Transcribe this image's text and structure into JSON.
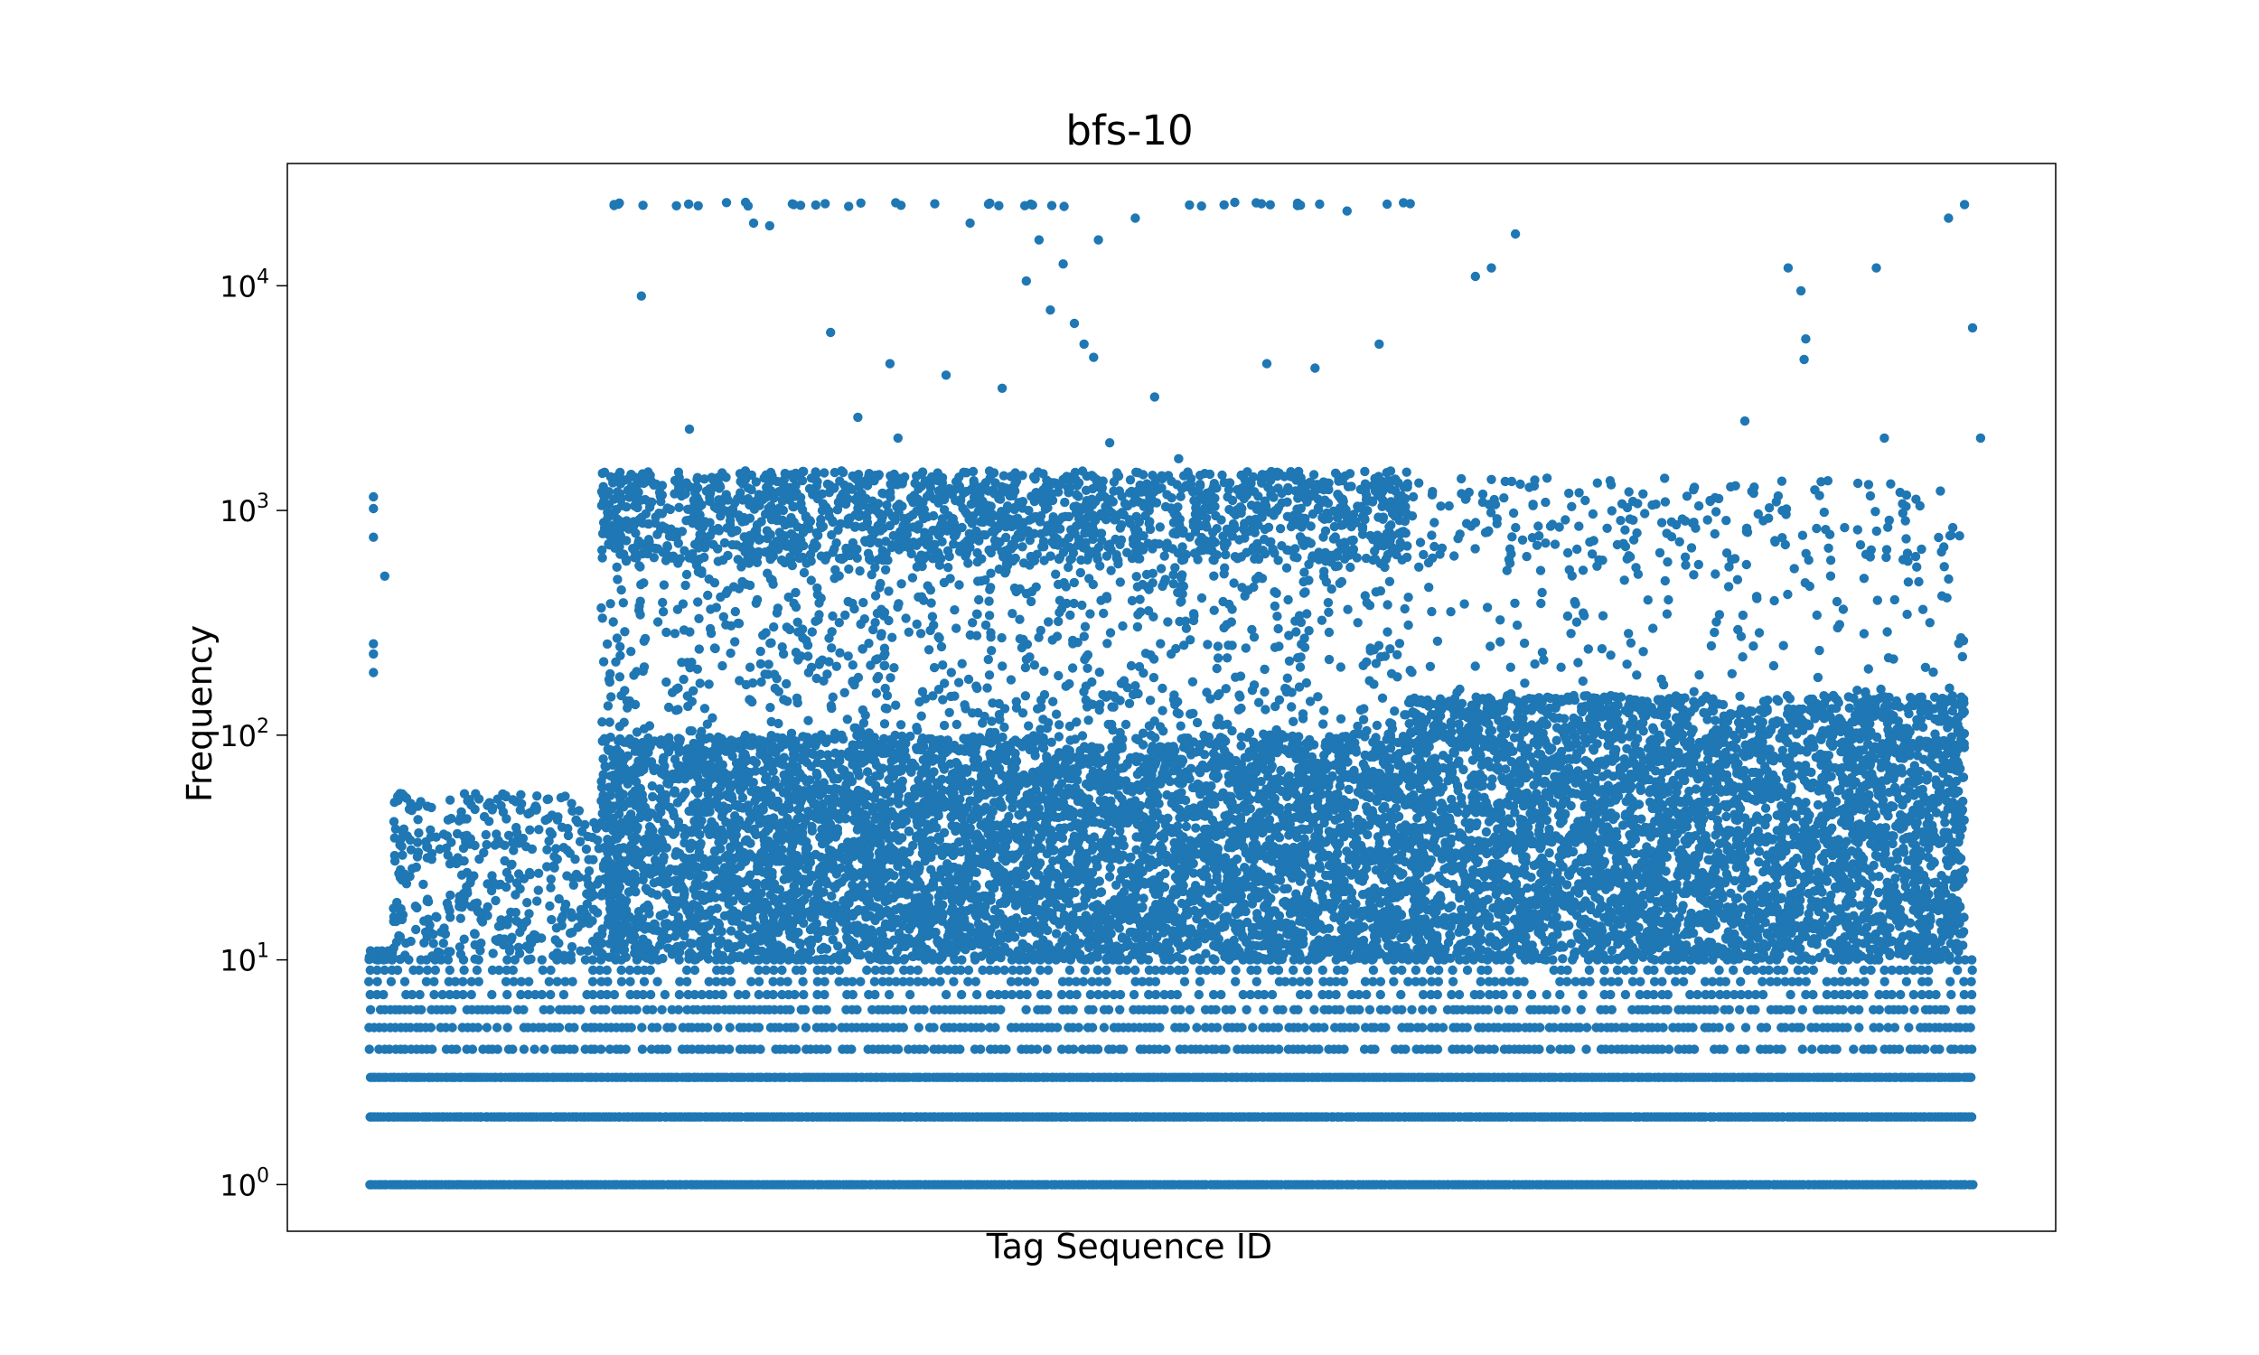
{
  "chart_data": {
    "type": "scatter",
    "title": "bfs-10",
    "xlabel": "Tag Sequence ID",
    "ylabel": "Frequency",
    "yscale": "log",
    "ylim": [
      0.62,
      35000
    ],
    "yticks": [
      {
        "value": 1,
        "base": "10",
        "exp": "0"
      },
      {
        "value": 10,
        "base": "10",
        "exp": "1"
      },
      {
        "value": 100,
        "base": "10",
        "exp": "2"
      },
      {
        "value": 1000,
        "base": "10",
        "exp": "3"
      },
      {
        "value": 10000,
        "base": "10",
        "exp": "4"
      }
    ],
    "x_ticks_shown": false,
    "grid": false,
    "marker_color": "#1f77b4",
    "x_extent": [
      0,
      1000
    ],
    "density_segments": [
      {
        "x": [
          0,
          15
        ],
        "max_y": 11,
        "outliers": [
          [
            3,
            1150
          ],
          [
            3,
            1020
          ],
          [
            3,
            760
          ],
          [
            10,
            510
          ],
          [
            3,
            255
          ],
          [
            3,
            230
          ],
          [
            3,
            190
          ]
        ]
      },
      {
        "x": [
          15,
          145
        ],
        "max_y": 55
      },
      {
        "x": [
          145,
          648
        ],
        "max_y": 100,
        "upper_band": [
          600,
          1500
        ]
      },
      {
        "x": [
          648,
          995
        ],
        "max_y": 150,
        "upper_band": [
          600,
          1400
        ]
      }
    ],
    "frequency_levels": [
      1,
      2,
      3,
      4,
      5,
      6,
      7,
      8,
      9,
      10
    ],
    "top_outliers": [
      [
        153,
        23000
      ],
      [
        170,
        9000
      ],
      [
        200,
        2300
      ],
      [
        235,
        23500
      ],
      [
        240,
        19000
      ],
      [
        250,
        18500
      ],
      [
        265,
        23000
      ],
      [
        288,
        6200
      ],
      [
        305,
        2600
      ],
      [
        325,
        4500
      ],
      [
        330,
        2100
      ],
      [
        360,
        4000
      ],
      [
        375,
        19000
      ],
      [
        395,
        3500
      ],
      [
        410,
        10500
      ],
      [
        418,
        16000
      ],
      [
        425,
        7800
      ],
      [
        433,
        12500
      ],
      [
        440,
        6800
      ],
      [
        446,
        5500
      ],
      [
        452,
        4800
      ],
      [
        455,
        16000
      ],
      [
        462,
        2000
      ],
      [
        478,
        20000
      ],
      [
        490,
        3200
      ],
      [
        505,
        1700
      ],
      [
        540,
        23500
      ],
      [
        560,
        4500
      ],
      [
        590,
        4300
      ],
      [
        610,
        21500
      ],
      [
        630,
        5500
      ],
      [
        690,
        11000
      ],
      [
        700,
        12000
      ],
      [
        715,
        17000
      ],
      [
        858,
        2500
      ],
      [
        885,
        12000
      ],
      [
        893,
        9500
      ],
      [
        895,
        4700
      ],
      [
        896,
        5800
      ],
      [
        940,
        12000
      ],
      [
        945,
        2100
      ],
      [
        985,
        20000
      ],
      [
        995,
        23000
      ],
      [
        1000,
        6500
      ],
      [
        1005,
        2100
      ]
    ],
    "ceiling_y": 23000
  }
}
